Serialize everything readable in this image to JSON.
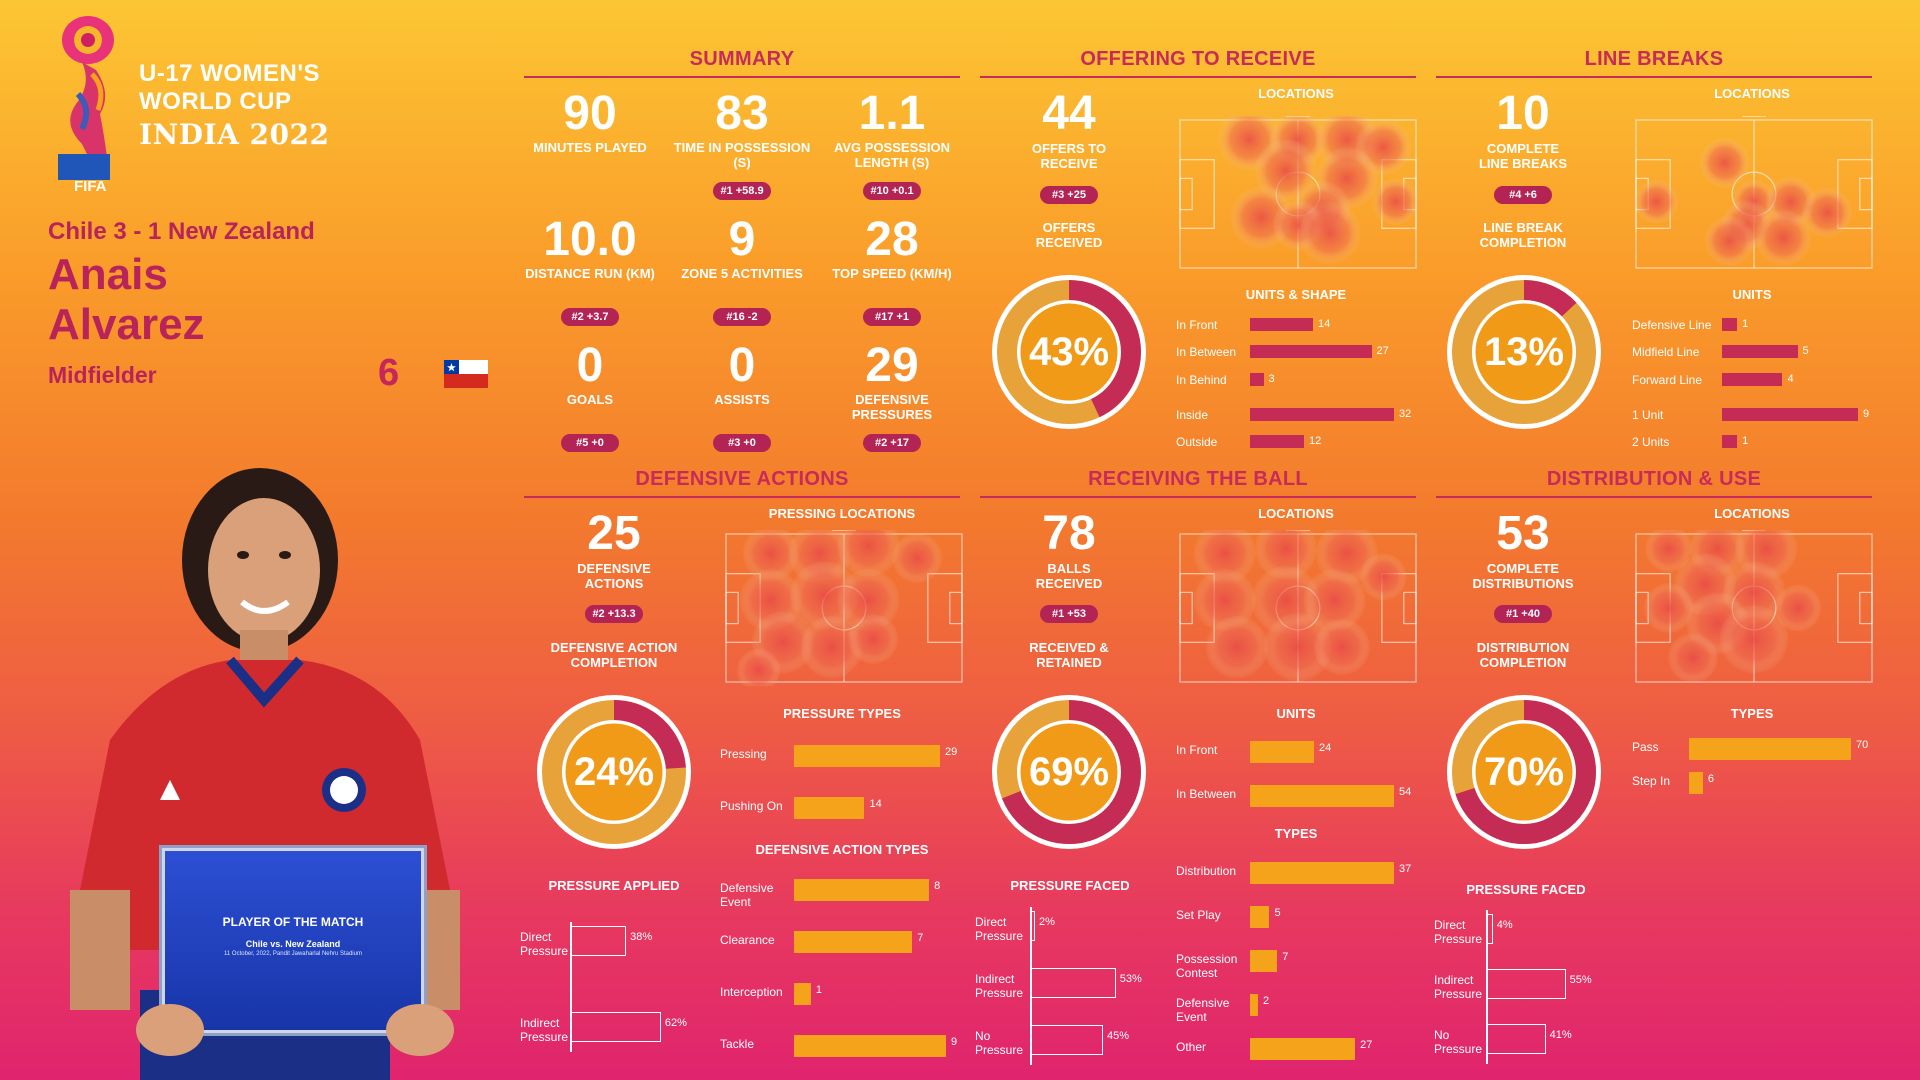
{
  "header": {
    "logo_fifa": "FIFA",
    "tournament_line1": "U-17 WOMEN'S",
    "tournament_line2": "WORLD CUP",
    "tournament_line3": "INDIA 2022",
    "match": "Chile 3 - 1 New Zealand",
    "first_name": "Anais",
    "last_name": "Alvarez",
    "position": "Midfielder",
    "number": "6",
    "flag_icon": "chile-flag-icon"
  },
  "trophy": {
    "title": "PLAYER OF THE MATCH",
    "match": "Chile vs. New Zealand",
    "date": "11 October, 2022, Pandit Jawaharlal Nehru Stadium"
  },
  "summary": {
    "title": "SUMMARY",
    "stats": [
      {
        "value": "90",
        "label": "MINUTES PLAYED",
        "rank": ""
      },
      {
        "value": "83",
        "label": "TIME IN POSSESSION (s)",
        "rank": "#1 +58.9"
      },
      {
        "value": "1.1",
        "label": "AVG POSSESSION LENGTH (s)",
        "rank": "#10 +0.1"
      },
      {
        "value": "10.0",
        "label": "DISTANCE RUN (KM)",
        "rank": "#2 +3.7"
      },
      {
        "value": "9",
        "label": "ZONE 5 ACTIVITIES",
        "rank": "#16 -2"
      },
      {
        "value": "28",
        "label": "TOP SPEED (KM/H)",
        "rank": "#17 +1"
      },
      {
        "value": "0",
        "label": "GOALS",
        "rank": "#5 +0"
      },
      {
        "value": "0",
        "label": "ASSISTS",
        "rank": "#3 +0"
      },
      {
        "value": "29",
        "label": "DEFENSIVE PRESSURES",
        "rank": "#2 +17"
      }
    ]
  },
  "offering": {
    "title": "OFFERING TO RECEIVE",
    "value": "44",
    "label": "OFFERS TO RECEIVE",
    "rank": "#3 +25",
    "donut_label": "OFFERS RECEIVED",
    "donut_value": "43%",
    "donut_fraction": 0.43,
    "locations_label": "LOCATIONS",
    "units_title": "UNITS & SHAPE",
    "bars": [
      {
        "label": "In Front",
        "value": 14
      },
      {
        "label": "In Between",
        "value": 27
      },
      {
        "label": "In Behind",
        "value": 3
      },
      {
        "label": "Inside",
        "value": 32
      },
      {
        "label": "Outside",
        "value": 12
      }
    ]
  },
  "line_breaks": {
    "title": "LINE BREAKS",
    "value": "10",
    "label": "COMPLETE LINE BREAKS",
    "rank": "#4 +6",
    "donut_label": "LINE BREAK COMPLETION",
    "donut_value": "13%",
    "donut_fraction": 0.13,
    "locations_label": "LOCATIONS",
    "units_title": "UNITS",
    "bars": [
      {
        "label": "Defensive Line",
        "value": 1
      },
      {
        "label": "Midfield Line",
        "value": 5
      },
      {
        "label": "Forward Line",
        "value": 4
      },
      {
        "label": "1 Unit",
        "value": 9
      },
      {
        "label": "2 Units",
        "value": 1
      }
    ]
  },
  "defensive": {
    "title": "DEFENSIVE ACTIONS",
    "value": "25",
    "label": "DEFENSIVE ACTIONS",
    "rank": "#2 +13.3",
    "donut_label": "DEFENSIVE ACTION COMPLETION",
    "donut_value": "24%",
    "donut_fraction": 0.24,
    "locations_label": "PRESSING LOCATIONS",
    "pressure_types_title": "PRESSURE TYPES",
    "pressure_types": [
      {
        "label": "Pressing",
        "value": 29
      },
      {
        "label": "Pushing On",
        "value": 14
      }
    ],
    "action_types_title": "DEFENSIVE ACTION TYPES",
    "action_types": [
      {
        "label": "Defensive Event",
        "value": 8
      },
      {
        "label": "Clearance",
        "value": 7
      },
      {
        "label": "Interception",
        "value": 1
      },
      {
        "label": "Tackle",
        "value": 9
      }
    ],
    "pressure_applied_title": "PRESSURE APPLIED",
    "pressure_applied": [
      {
        "label": "Direct Pressure",
        "value": "38%",
        "pct": 38
      },
      {
        "label": "Indirect Pressure",
        "value": "62%",
        "pct": 62
      }
    ]
  },
  "receiving": {
    "title": "RECEIVING THE BALL",
    "value": "78",
    "label": "BALLS RECEIVED",
    "rank": "#1 +53",
    "donut_label": "RECEIVED & RETAINED",
    "donut_value": "69%",
    "donut_fraction": 0.69,
    "locations_label": "LOCATIONS",
    "units_title": "UNITS",
    "units": [
      {
        "label": "In Front",
        "value": 24
      },
      {
        "label": "In Between",
        "value": 54
      }
    ],
    "types_title": "TYPES",
    "types": [
      {
        "label": "Distribution",
        "value": 37
      },
      {
        "label": "Set Play",
        "value": 5
      },
      {
        "label": "Possession Contest",
        "value": 7
      },
      {
        "label": "Defensive Event",
        "value": 2
      },
      {
        "label": "Other",
        "value": 27
      }
    ],
    "pressure_faced_title": "PRESSURE FACED",
    "pressure_faced": [
      {
        "label": "Direct Pressure",
        "value": "2%",
        "pct": 2
      },
      {
        "label": "Indirect Pressure",
        "value": "53%",
        "pct": 53
      },
      {
        "label": "No Pressure",
        "value": "45%",
        "pct": 45
      }
    ]
  },
  "distribution": {
    "title": "DISTRIBUTION & USE",
    "value": "53",
    "label": "COMPLETE DISTRIBUTIONS",
    "rank": "#1 +40",
    "donut_label": "DISTRIBUTION COMPLETION",
    "donut_value": "70%",
    "donut_fraction": 0.7,
    "locations_label": "LOCATIONS",
    "types_title": "TYPES",
    "types": [
      {
        "label": "Pass",
        "value": 70
      },
      {
        "label": "Step In",
        "value": 6
      }
    ],
    "pressure_faced_title": "PRESSURE FACED",
    "pressure_faced": [
      {
        "label": "Direct Pressure",
        "value": "4%",
        "pct": 4
      },
      {
        "label": "Indirect Pressure",
        "value": "55%",
        "pct": 55
      },
      {
        "label": "No Pressure",
        "value": "41%",
        "pct": 41
      }
    ]
  },
  "colors": {
    "accent": "#c72b59",
    "bar_red": "#c42c55",
    "bar_orange": "#f5a31a",
    "donut_ring": "#e8a23a"
  }
}
